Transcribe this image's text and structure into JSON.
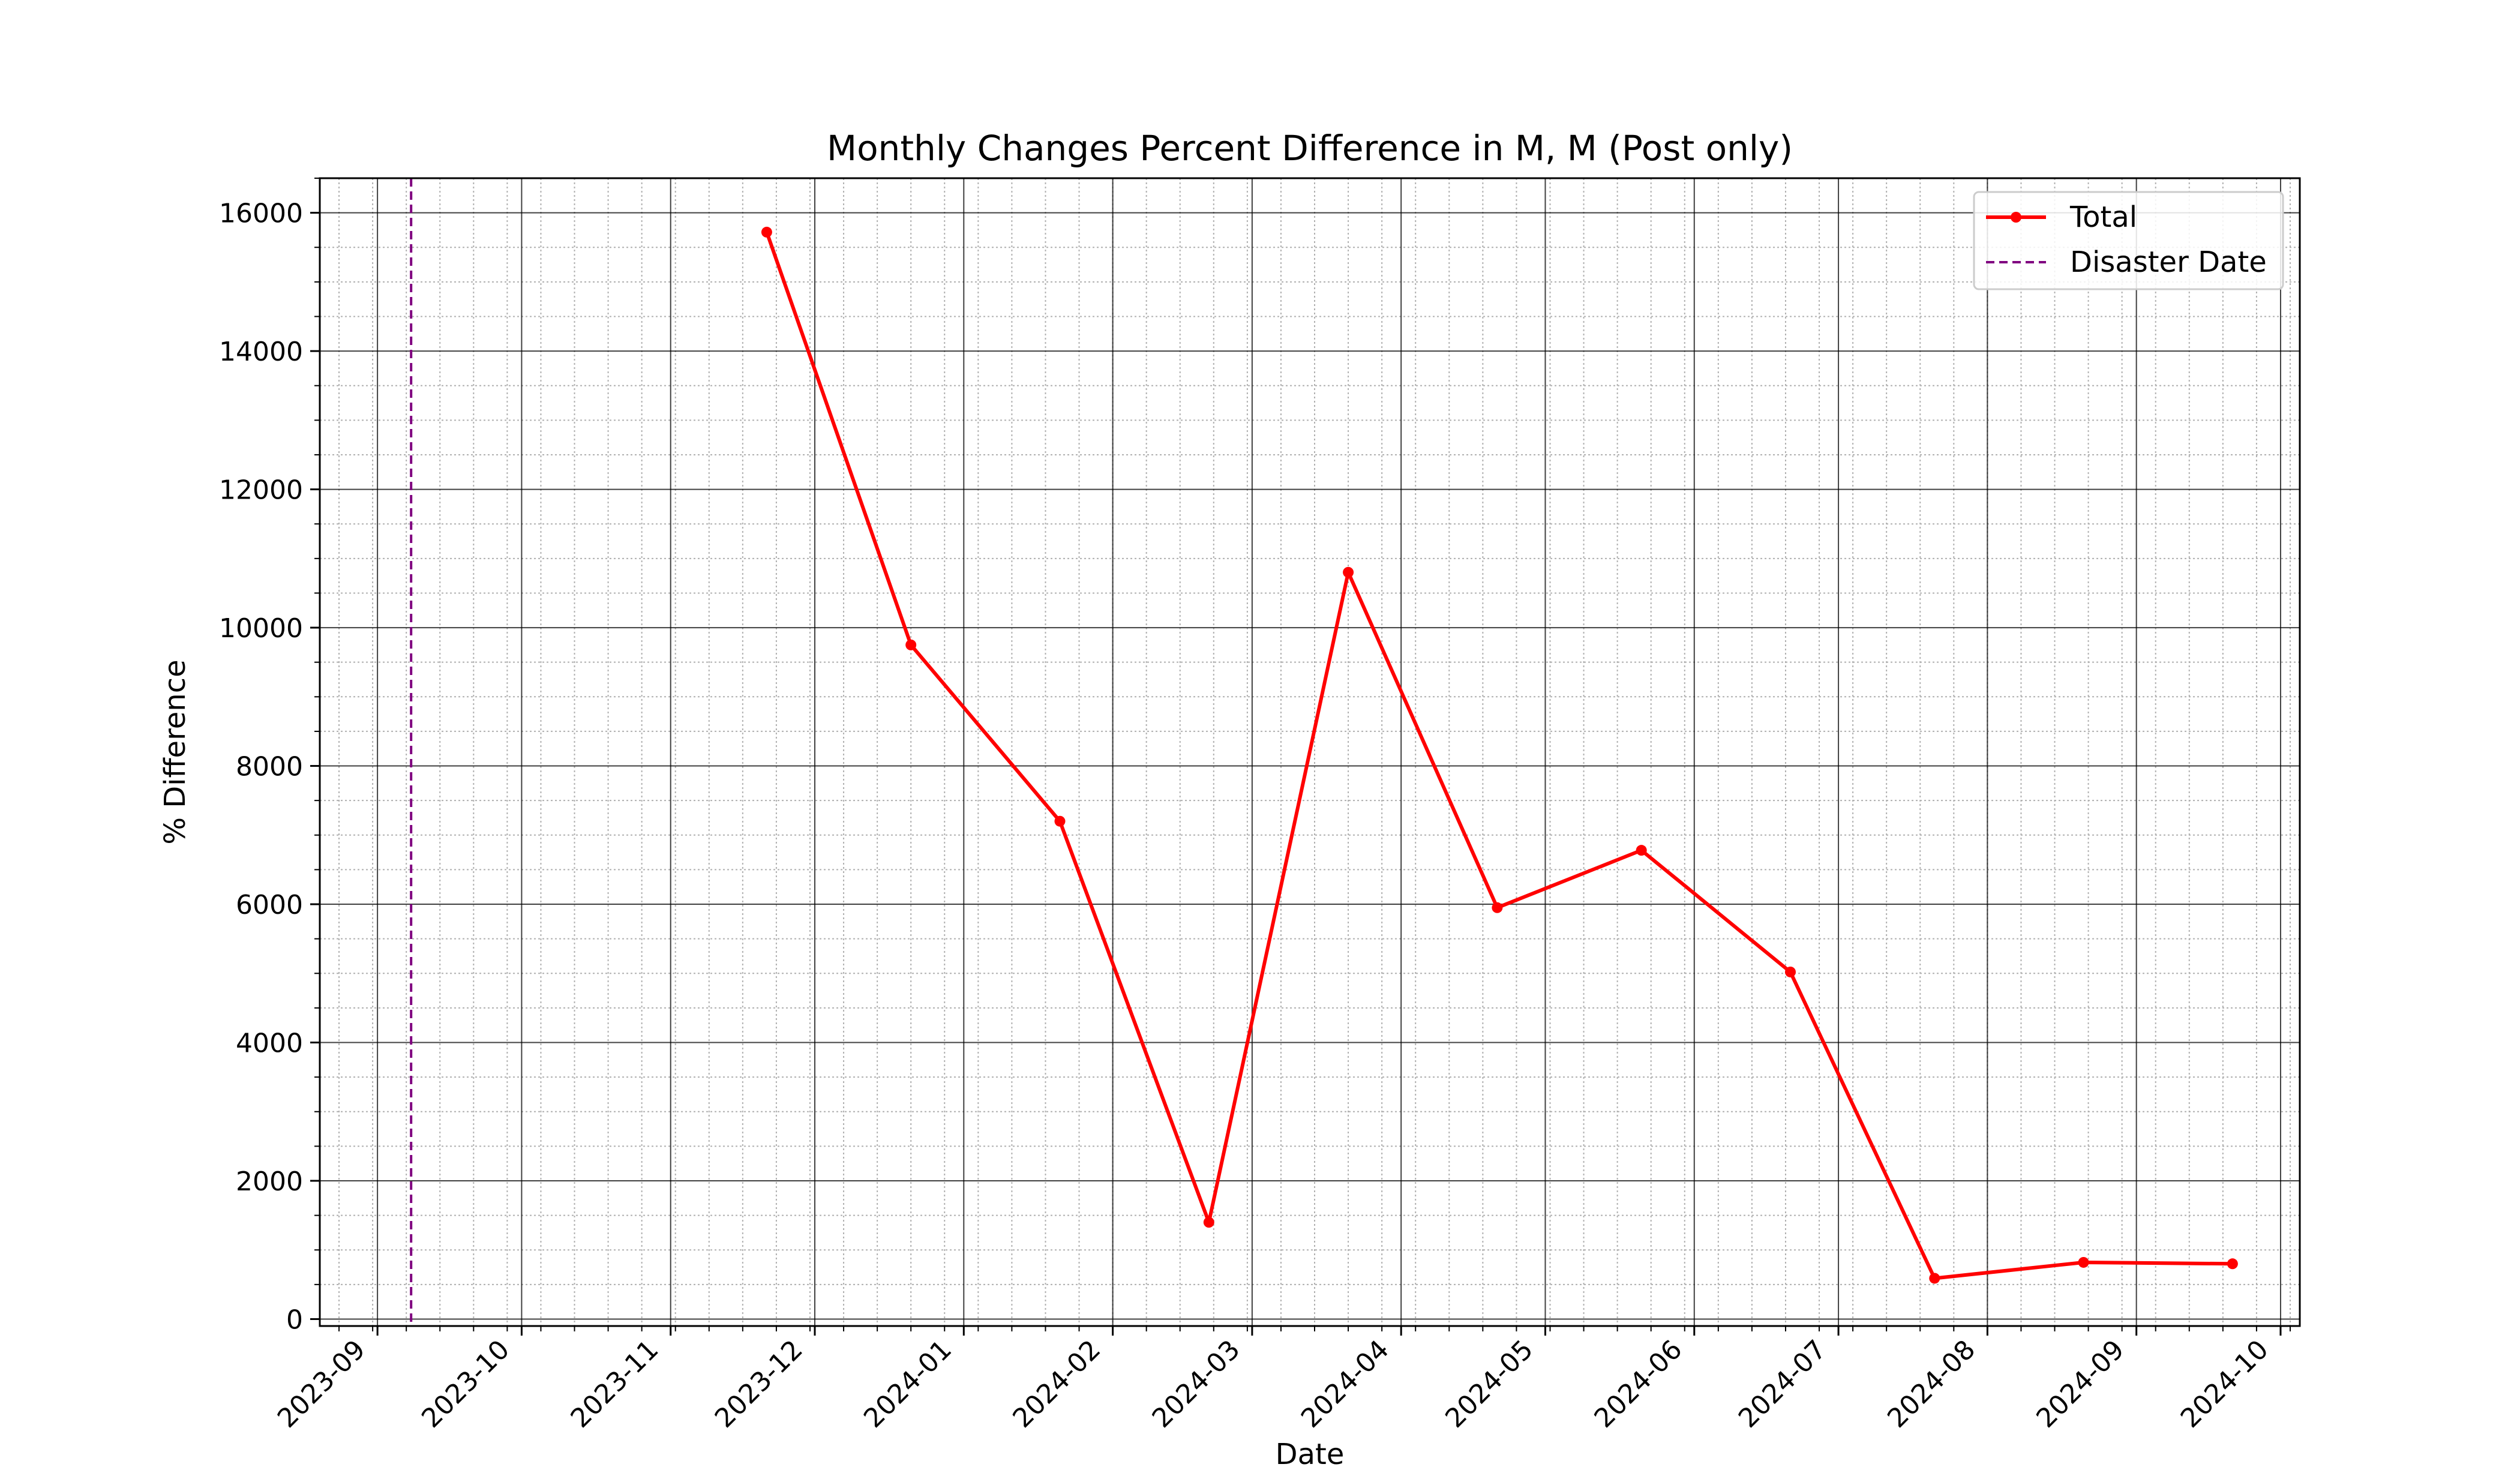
{
  "chart_data": {
    "type": "line",
    "title": "Monthly Changes Percent Difference in M, M (Post only)",
    "xlabel": "Date",
    "ylabel": "% Difference",
    "x_tick_labels": [
      "2023-09",
      "2023-10",
      "2023-11",
      "2023-12",
      "2024-01",
      "2024-02",
      "2024-03",
      "2024-04",
      "2024-05",
      "2024-06",
      "2024-07",
      "2024-08",
      "2024-09",
      "2024-10"
    ],
    "x_ticks": [
      "2023-09-01",
      "2023-10-01",
      "2023-11-01",
      "2023-12-01",
      "2024-01-01",
      "2024-02-01",
      "2024-03-01",
      "2024-04-01",
      "2024-05-01",
      "2024-06-01",
      "2024-07-01",
      "2024-08-01",
      "2024-09-01",
      "2024-10-01"
    ],
    "xlim": [
      "2023-08-20",
      "2024-10-05"
    ],
    "ylim": [
      -100,
      16500
    ],
    "y_ticks": [
      0,
      2000,
      4000,
      6000,
      8000,
      10000,
      12000,
      14000,
      16000
    ],
    "grid": true,
    "minor_grid": true,
    "legend_position": "top-right",
    "series": [
      {
        "name": "Total",
        "color": "#ff0000",
        "x": [
          "2023-11-21",
          "2023-12-21",
          "2024-01-21",
          "2024-02-21",
          "2024-03-21",
          "2024-04-21",
          "2024-05-21",
          "2024-06-21",
          "2024-07-21",
          "2024-08-21",
          "2024-09-21"
        ],
        "y": [
          15720,
          9750,
          7200,
          1400,
          10800,
          5950,
          6780,
          5020,
          590,
          820,
          800
        ]
      }
    ],
    "vlines": [
      {
        "name": "Disaster Date",
        "x": "2023-09-08",
        "color": "#800080",
        "style": "dashed"
      }
    ]
  }
}
